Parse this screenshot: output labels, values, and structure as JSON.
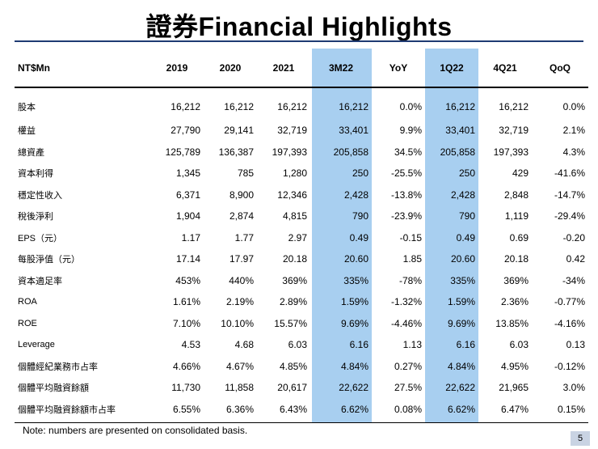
{
  "title": "證券Financial Highlights",
  "table": {
    "headers": [
      "NT$Mn",
      "2019",
      "2020",
      "2021",
      "3M22",
      "YoY",
      "1Q22",
      "4Q21",
      "QoQ"
    ],
    "rows": [
      [
        "股本",
        "16,212",
        "16,212",
        "16,212",
        "16,212",
        "0.0%",
        "16,212",
        "16,212",
        "0.0%"
      ],
      [
        "權益",
        "27,790",
        "29,141",
        "32,719",
        "33,401",
        "9.9%",
        "33,401",
        "32,719",
        "2.1%"
      ],
      [
        "總資產",
        "125,789",
        "136,387",
        "197,393",
        "205,858",
        "34.5%",
        "205,858",
        "197,393",
        "4.3%"
      ],
      [
        "資本利得",
        "1,345",
        "785",
        "1,280",
        "250",
        "-25.5%",
        "250",
        "429",
        "-41.6%"
      ],
      [
        "穩定性收入",
        "6,371",
        "8,900",
        "12,346",
        "2,428",
        "-13.8%",
        "2,428",
        "2,848",
        "-14.7%"
      ],
      [
        "稅後淨利",
        "1,904",
        "2,874",
        "4,815",
        "790",
        "-23.9%",
        "790",
        "1,119",
        "-29.4%"
      ],
      [
        "EPS（元）",
        "1.17",
        "1.77",
        "2.97",
        "0.49",
        "-0.15",
        "0.49",
        "0.69",
        "-0.20"
      ],
      [
        "每股淨值（元）",
        "17.14",
        "17.97",
        "20.18",
        "20.60",
        "1.85",
        "20.60",
        "20.18",
        "0.42"
      ],
      [
        "資本適足率",
        "453%",
        "440%",
        "369%",
        "335%",
        "-78%",
        "335%",
        "369%",
        "-34%"
      ],
      [
        "ROA",
        "1.61%",
        "2.19%",
        "2.89%",
        "1.59%",
        "-1.32%",
        "1.59%",
        "2.36%",
        "-0.77%"
      ],
      [
        "ROE",
        "7.10%",
        "10.10%",
        "15.57%",
        "9.69%",
        "-4.46%",
        "9.69%",
        "13.85%",
        "-4.16%"
      ],
      [
        "Leverage",
        "4.53",
        "4.68",
        "6.03",
        "6.16",
        "1.13",
        "6.16",
        "6.03",
        "0.13"
      ],
      [
        "個體經紀業務市占率",
        "4.66%",
        "4.67%",
        "4.85%",
        "4.84%",
        "0.27%",
        "4.84%",
        "4.95%",
        "-0.12%"
      ],
      [
        "個體平均融資餘額",
        "11,730",
        "11,858",
        "20,617",
        "22,622",
        "27.5%",
        "22,622",
        "21,965",
        "3.0%"
      ],
      [
        "個體平均融資餘額市占率",
        "6.55%",
        "6.36%",
        "6.43%",
        "6.62%",
        "0.08%",
        "6.62%",
        "6.47%",
        "0.15%"
      ]
    ]
  },
  "note": "Note: numbers are presented on consolidated basis.",
  "page_number": "5",
  "colors": {
    "highlight": "#a8cff0",
    "rule": "#1f3b73"
  }
}
